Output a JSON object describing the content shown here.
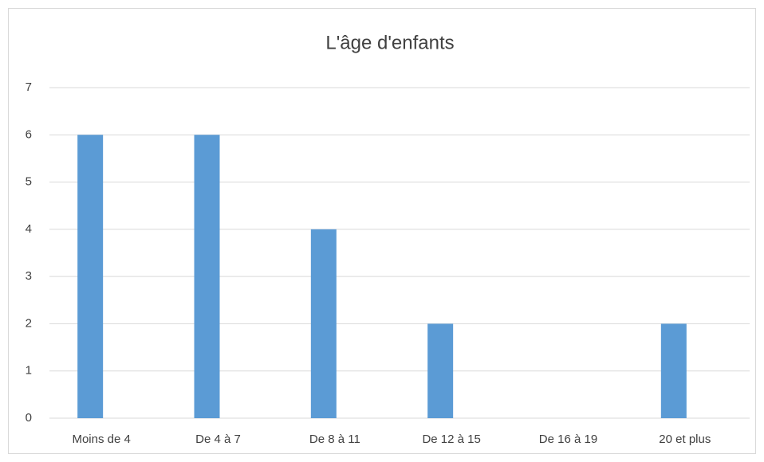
{
  "chart_data": {
    "type": "bar",
    "title": "L'âge d'enfants",
    "categories": [
      "Moins de 4",
      "De 4 à 7",
      "De 8 à 11",
      "De 12 à 15",
      "De 16 à 19",
      "20 et plus"
    ],
    "values": [
      6,
      6,
      4,
      2,
      0,
      2
    ],
    "color": "#5b9bd5",
    "ylim": [
      0,
      7
    ],
    "yticks": [
      0,
      1,
      2,
      3,
      4,
      5,
      6,
      7
    ],
    "grid": true
  }
}
